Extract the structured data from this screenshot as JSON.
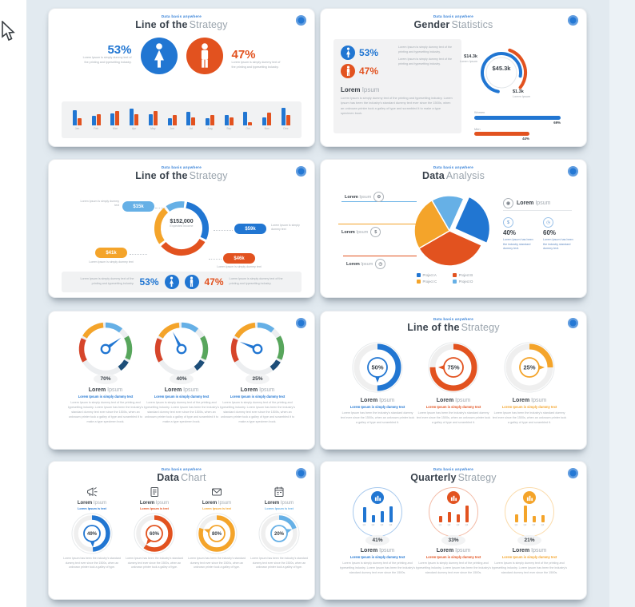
{
  "page": {
    "background": "#e2eaf0",
    "left_strip": "#ffffff"
  },
  "kicker": "Data basis anywhere",
  "colors": {
    "blue": "#2176d2",
    "light_blue": "#66b0e6",
    "red": "#e2521f",
    "yellow": "#f4a42a",
    "green": "#58a65c",
    "navy": "#1d4e79"
  },
  "slides": [
    {
      "title_bold": "Line of the",
      "title_light": "Strategy",
      "female_pct": "53%",
      "male_pct": "47%",
      "female_note": "Lorem Ipsum is simply dummy text of the printing and typesetting industry.",
      "male_note": "Lorem Ipsum is simply dummy text of the printing and typesetting industry.",
      "chart": {
        "type": "bar",
        "categories": [
          "Jan",
          "Feb",
          "Mar",
          "Apr",
          "May",
          "Jun",
          "Jul",
          "Aug",
          "Sep",
          "Oct",
          "Nov",
          "Dec"
        ],
        "series": [
          {
            "name": "Women",
            "color": "#2176d2",
            "values": [
              78,
              48,
              62,
              88,
              58,
              38,
              72,
              38,
              55,
              72,
              42,
              92
            ]
          },
          {
            "name": "Men",
            "color": "#e2521f",
            "values": [
              38,
              58,
              75,
              60,
              75,
              55,
              42,
              55,
              40,
              18,
              68,
              55
            ]
          }
        ]
      }
    },
    {
      "title_bold": "Gender",
      "title_light": "Statistics",
      "female_pct": "53%",
      "male_pct": "47%",
      "note1": "Lorem Ipsum is simply dummy text of the printing and typesetting industry.",
      "note2": "Lorem Ipsum is simply dummy text of the printing and typesetting industry.",
      "heading_bold": "Lorem",
      "heading_light": "Ipsum",
      "paragraph": "Lorem Ipsum is simply dummy text of the printing and typesetting industry. Lorem Ipsum has been the industry's standard dummy text ever since the 1500s, when an unknown printer took a galley of type and scrambled it to make a type specimen book.",
      "donut": {
        "center": "$45.3k",
        "label_left": "$14.3k",
        "label_left_sub": "Lorem Ipsum",
        "label_right": "$1.3k",
        "label_right_sub": "Lorem Ipsum",
        "blue_pct": 75,
        "red_pct": 30
      },
      "bars": [
        {
          "label": "Women",
          "value": 69,
          "display": "69%",
          "color": "#2176d2"
        },
        {
          "label": "Men",
          "value": 44,
          "display": "44%",
          "color": "#e2521f"
        }
      ]
    },
    {
      "title_bold": "Line of the",
      "title_light": "Strategy",
      "center_value": "$152,000",
      "center_label": "Expected income",
      "pills": [
        {
          "value": "$15k",
          "color": "#66b0e6",
          "note": "Lorem Ipsum is simply dummy text"
        },
        {
          "value": "$59k",
          "color": "#2176d2",
          "note": "Lorem Ipsum is simply dummy text"
        },
        {
          "value": "$41k",
          "color": "#f4a42a",
          "note": "Lorem Ipsum is simply dummy text"
        },
        {
          "value": "$46k",
          "color": "#e2521f",
          "note": "Lorem Ipsum is simply dummy text"
        }
      ],
      "female_pct": "53%",
      "male_pct": "47%",
      "left_note": "Lorem Ipsum is simply dummy text of the printing and typesetting industry.",
      "right_note": "Lorem Ipsum is simply dummy text of the printing and typesetting industry."
    },
    {
      "title_bold": "Data",
      "title_light": "Analysis",
      "chart": {
        "type": "pie",
        "slices": [
          {
            "name": "Project D",
            "value": 15,
            "color": "#66b0e6",
            "exploded": false
          },
          {
            "name": "Project A",
            "value": 25,
            "color": "#2176d2",
            "exploded": true
          },
          {
            "name": "Project B",
            "value": 35,
            "color": "#e2521f",
            "exploded": false
          },
          {
            "name": "Project C",
            "value": 25,
            "color": "#f4a42a",
            "exploded": false
          }
        ]
      },
      "callouts": [
        {
          "bold": "Lorem",
          "light": "Ipsum",
          "color": "#66b0e6",
          "icon": "gear"
        },
        {
          "bold": "Lorem",
          "light": "Ipsum",
          "color": "#f4a42a",
          "icon": "money"
        },
        {
          "bold": "Lorem",
          "light": "Ipsum",
          "color": "#e2521f",
          "icon": "clock"
        }
      ],
      "right_heading_bold": "Lorem",
      "right_heading_light": "Ipsum",
      "stats": [
        {
          "value": "40%",
          "note": "Lorem Ipsum has been the industry standard dummy text."
        },
        {
          "value": "60%",
          "note": "Lorem Ipsum has been the industry standard dummy text."
        }
      ],
      "legend": [
        {
          "label": "Project A",
          "color": "#2176d2"
        },
        {
          "label": "Project B",
          "color": "#e2521f"
        },
        {
          "label": "Project C",
          "color": "#f4a42a"
        },
        {
          "label": "Project D",
          "color": "#66b0e6"
        }
      ]
    },
    {
      "items": [
        {
          "value": 70,
          "display": "70%",
          "heading_bold": "Lorem",
          "heading_light": "Ipsum",
          "subtitle": "Lorem Ipsum is simply dummy text",
          "subtitle_color": "#2176d2",
          "paragraph": "Lorem Ipsum is simply dummy text of the printing and typesetting industry. Lorem Ipsum has been the industry's standard dummy text ever since the 1500s, when an unknown printer took a galley of type and scrambled it to make a type specimen book."
        },
        {
          "value": 40,
          "display": "40%",
          "heading_bold": "Lorem",
          "heading_light": "Ipsum",
          "subtitle": "Lorem Ipsum is simply dummy text",
          "subtitle_color": "#2176d2",
          "paragraph": "Lorem Ipsum is simply dummy text of the printing and typesetting industry. Lorem Ipsum has been the industry's standard dummy text ever since the 1500s, when an unknown printer took a galley of type and scrambled it to make a type specimen book."
        },
        {
          "value": 25,
          "display": "25%",
          "heading_bold": "Lorem",
          "heading_light": "Ipsum",
          "subtitle": "Lorem Ipsum is simply dummy text",
          "subtitle_color": "#2176d2",
          "paragraph": "Lorem Ipsum is simply dummy text of the printing and typesetting industry. Lorem Ipsum has been the industry's standard dummy text ever since the 1500s, when an unknown printer took a galley of type and scrambled it to make a type specimen book."
        }
      ]
    },
    {
      "title_bold": "Line of the",
      "title_light": "Strategy",
      "items": [
        {
          "value": 50,
          "display": "50%",
          "color": "#2176d2",
          "heading_bold": "Lorem",
          "heading_light": "Ipsum",
          "subtitle": "Lorem Ipsum is simply dummy text",
          "paragraph": "Lorem Ipsum has been the industry's standard dummy text ever since the 1500s, when an unknown printer took a galley of type and scrambled it."
        },
        {
          "value": 75,
          "display": "75%",
          "color": "#e2521f",
          "heading_bold": "Lorem",
          "heading_light": "Ipsum",
          "subtitle": "Lorem Ipsum is simply dummy text",
          "paragraph": "Lorem Ipsum has been the industry's standard dummy text ever since the 1500s, when an unknown printer took a galley of type and scrambled it."
        },
        {
          "value": 25,
          "display": "25%",
          "color": "#f4a42a",
          "heading_bold": "Lorem",
          "heading_light": "Ipsum",
          "subtitle": "Lorem Ipsum is simply dummy text",
          "paragraph": "Lorem Ipsum has been the industry's standard dummy text ever since the 1500s, when an unknown printer took a galley of type and scrambled it."
        }
      ]
    },
    {
      "title_bold": "Data",
      "title_light": "Chart",
      "items": [
        {
          "icon": "megaphone",
          "value": 49,
          "display": "49%",
          "color": "#2176d2",
          "heading_bold": "Lorem",
          "heading_light": "Ipsum",
          "subtitle": "Lorem Ipsum is text",
          "paragraph": "Lorem Ipsum has been the industry's standard dummy text ever since the 1500s, when an unknown printer took a galley of type."
        },
        {
          "icon": "document",
          "value": 60,
          "display": "60%",
          "color": "#e2521f",
          "heading_bold": "Lorem",
          "heading_light": "Ipsum",
          "subtitle": "Lorem Ipsum is text",
          "paragraph": "Lorem Ipsum has been the industry's standard dummy text ever since the 1500s, when an unknown printer took a galley of type."
        },
        {
          "icon": "envelope",
          "value": 80,
          "display": "80%",
          "color": "#f4a42a",
          "heading_bold": "Lorem",
          "heading_light": "Ipsum",
          "subtitle": "Lorem Ipsum is text",
          "paragraph": "Lorem Ipsum has been the industry's standard dummy text ever since the 1500s, when an unknown printer took a galley of type."
        },
        {
          "icon": "calendar",
          "value": 20,
          "display": "20%",
          "color": "#66b0e6",
          "heading_bold": "Lorem",
          "heading_light": "Ipsum",
          "subtitle": "Lorem Ipsum is text",
          "paragraph": "Lorem Ipsum has been the industry's standard dummy text ever since the 1500s, when an unknown printer took a galley of type."
        }
      ]
    },
    {
      "title_bold": "Quarterly",
      "title_light": "Strategy",
      "items": [
        {
          "color": "#2176d2",
          "value": "41%",
          "bars": [
            78,
            38,
            58,
            85
          ],
          "labels": [
            "Q1",
            "Q2",
            "Q3",
            "Q4"
          ],
          "heading_bold": "Lorem",
          "heading_light": "Ipsum",
          "subtitle": "Lorem Ipsum is simply dummy text",
          "paragraph": "Lorem Ipsum is simply dummy text of the printing and typesetting industry. Lorem Ipsum has been the industry's standard dummy text ever since the 1500s."
        },
        {
          "color": "#e2521f",
          "value": "33%",
          "bars": [
            35,
            55,
            42,
            88
          ],
          "labels": [
            "Q1",
            "Q2",
            "Q3",
            "Q4"
          ],
          "heading_bold": "Lorem",
          "heading_light": "Ipsum",
          "subtitle": "Lorem Ipsum is simply dummy text",
          "paragraph": "Lorem Ipsum is simply dummy text of the printing and typesetting industry. Lorem Ipsum has been the industry's standard dummy text ever since the 1500s."
        },
        {
          "color": "#f4a42a",
          "value": "21%",
          "bars": [
            42,
            88,
            35,
            38
          ],
          "labels": [
            "Q1",
            "Q2",
            "Q3",
            "Q4"
          ],
          "heading_bold": "Lorem",
          "heading_light": "Ipsum",
          "subtitle": "Lorem Ipsum is simply dummy text",
          "paragraph": "Lorem Ipsum is simply dummy text of the printing and typesetting industry. Lorem Ipsum has been the industry's standard dummy text ever since the 1500s."
        }
      ]
    }
  ]
}
